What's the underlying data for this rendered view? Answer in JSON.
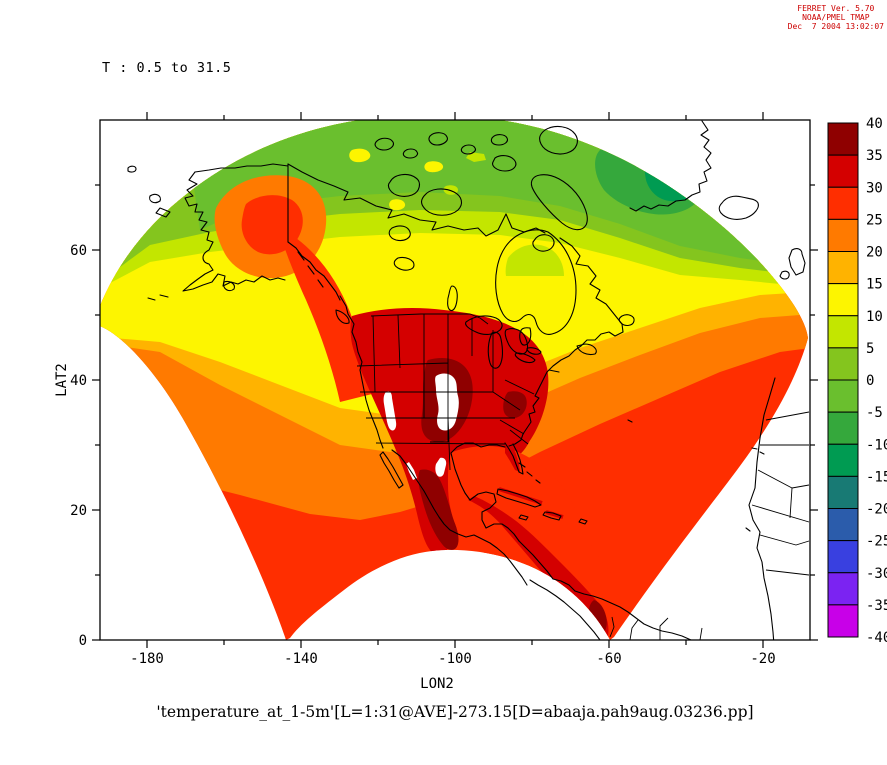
{
  "header": {
    "line1": "FERRET Ver. 5.70",
    "line2": "NOAA/PMEL TMAP",
    "line3": "Dec  7 2004 13:02:07",
    "color": "#cc0000"
  },
  "title": "T : 0.5 to 31.5",
  "caption": "'temperature_at_1-5m'[L=1:31@AVE]-273.15[D=abaaja.pah9aug.03236.pp]",
  "axes": {
    "x": {
      "label": "LON2",
      "ticks": [
        {
          "v": -180,
          "t": "-180"
        },
        {
          "v": -140,
          "t": "-140"
        },
        {
          "v": -100,
          "t": "-100"
        },
        {
          "v": -60,
          "t": "-60"
        },
        {
          "v": -20,
          "t": "-20"
        }
      ],
      "minor": [
        -160,
        -120,
        -80,
        -40
      ],
      "range": [
        -192,
        -8
      ]
    },
    "y": {
      "label": "LAT2",
      "ticks": [
        {
          "v": 0,
          "t": "0"
        },
        {
          "v": 20,
          "t": "20"
        },
        {
          "v": 40,
          "t": "40"
        },
        {
          "v": 60,
          "t": "60"
        }
      ],
      "minor": [
        10,
        30,
        50,
        70
      ],
      "range": [
        0,
        80
      ]
    }
  },
  "colorbar": {
    "labels": [
      {
        "v": 40,
        "t": "40"
      },
      {
        "v": 35,
        "t": "35"
      },
      {
        "v": 30,
        "t": "30"
      },
      {
        "v": 25,
        "t": "25"
      },
      {
        "v": 20,
        "t": "20"
      },
      {
        "v": 15,
        "t": "15"
      },
      {
        "v": 10,
        "t": "10"
      },
      {
        "v": 5,
        "t": "5"
      },
      {
        "v": 0,
        "t": "0"
      },
      {
        "v": -5,
        "t": "-5"
      },
      {
        "v": -10,
        "t": "-10"
      },
      {
        "v": -15,
        "t": "-15"
      },
      {
        "v": -20,
        "t": "-20"
      },
      {
        "v": -25,
        "t": "-25"
      },
      {
        "v": -30,
        "t": "-30"
      },
      {
        "v": -35,
        "t": "-35"
      },
      {
        "v": -40,
        "t": "-40"
      }
    ],
    "colors_top_to_bottom": [
      "#8f0000",
      "#d40000",
      "#ff2e00",
      "#ff7a00",
      "#ffb300",
      "#fdf500",
      "#c3e600",
      "#84c51e",
      "#6abf2e",
      "#35a83c",
      "#009b52",
      "#187a74",
      "#2b5cab",
      "#3940e0",
      "#7b23f2",
      "#c800e8"
    ]
  },
  "fills": {
    "b35_40": "#8f0000",
    "b30_35": "#d40000",
    "b25_30": "#ff2e00",
    "b20_25": "#ff7a00",
    "b15_20": "#ffb300",
    "b10_15": "#fdf500",
    "b5_10": "#c3e600",
    "b0_5": "#84c51e",
    "bm5_0": "#6abf2e",
    "bm10_m5": "#35a83c",
    "bm15_m10": "#009b52",
    "missing": "#ffffff"
  },
  "chart_data": {
    "type": "heatmap",
    "title": "T : 0.5 to 31.5",
    "variable_expression": "'temperature_at_1-5m'[L=1:31@AVE]-273.15",
    "dataset": "abaaja.pah9aug.03236.pp",
    "software": "FERRET Ver. 5.70 NOAA/PMEL TMAP",
    "plotted_value_range": [
      0.5,
      31.5
    ],
    "units": "degrees C (Kelvin minus 273.15)",
    "xlabel": "LON2",
    "ylabel": "LAT2",
    "xlim": [
      -192,
      -8
    ],
    "ylim": [
      0,
      80
    ],
    "grid": false,
    "legend_position": "right colorbar",
    "color_levels": {
      "min": -40,
      "max": 40,
      "step": 5
    },
    "domain_shape": "fan-shaped curvilinear model grid over North America, lon -180 to -20, lat 0 to 80",
    "observed_features": [
      "Hottest band 30-40 degC (dark red) over central/southwestern US, Mexico, Central America, Cuba and Hispaniola",
      "White (missing / out-of-range) patches over the Colorado plateau and Sierra Nevada high terrain",
      "Red 25-30 degC over subtropical oceans, Gulf of Mexico and Caribbean",
      "Orange and amber 15-25 degC mid-latitude band across southern Canada and mid-latitude oceans",
      "Yellow 10-15 degC over the North Pacific, Gulf of Alaska and Hudson Bay region",
      "Warm orange-red anomaly over interior Alaska and down the Rocky Mountains",
      "Green 0-5 and -5 to 0 degC over the Canadian Arctic islands",
      "Coldest patch -10 to -15 degC (deep green) over Greenland at the fan's northeast edge"
    ]
  }
}
